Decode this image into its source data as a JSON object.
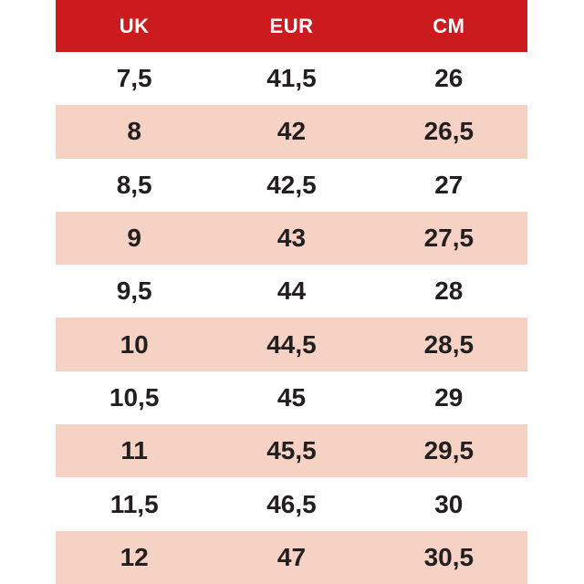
{
  "table": {
    "headers": {
      "uk": "UK",
      "eur": "EUR",
      "cm": "CM"
    },
    "rows": [
      {
        "uk": "7,5",
        "eur": "41,5",
        "cm": "26"
      },
      {
        "uk": "8",
        "eur": "42",
        "cm": "26,5"
      },
      {
        "uk": "8,5",
        "eur": "42,5",
        "cm": "27"
      },
      {
        "uk": "9",
        "eur": "43",
        "cm": "27,5"
      },
      {
        "uk": "9,5",
        "eur": "44",
        "cm": "28"
      },
      {
        "uk": "10",
        "eur": "44,5",
        "cm": "28,5"
      },
      {
        "uk": "10,5",
        "eur": "45",
        "cm": "29"
      },
      {
        "uk": "11",
        "eur": "45,5",
        "cm": "29,5"
      },
      {
        "uk": "11,5",
        "eur": "46,5",
        "cm": "30"
      },
      {
        "uk": "12",
        "eur": "47",
        "cm": "30,5"
      }
    ]
  },
  "colors": {
    "header_bg": "#cc1b1e",
    "header_text": "#ffffff",
    "row_bg": "#ffffff",
    "row_alt_bg": "#f5d2c4",
    "cell_text": "#231f20"
  },
  "chart_data": {
    "type": "table",
    "title": "",
    "columns": [
      "UK",
      "EUR",
      "CM"
    ],
    "rows": [
      [
        "7,5",
        "41,5",
        "26"
      ],
      [
        "8",
        "42",
        "26,5"
      ],
      [
        "8,5",
        "42,5",
        "27"
      ],
      [
        "9",
        "43",
        "27,5"
      ],
      [
        "9,5",
        "44",
        "28"
      ],
      [
        "10",
        "44,5",
        "28,5"
      ],
      [
        "10,5",
        "45",
        "29"
      ],
      [
        "11",
        "45,5",
        "29,5"
      ],
      [
        "11,5",
        "46,5",
        "30"
      ],
      [
        "12",
        "47",
        "30,5"
      ]
    ],
    "layout_hints": {
      "header_style": "red background, white bold text",
      "row_striping": "odd rows white, even rows light peach-pink",
      "alignment": "all cells centered",
      "decimal_separator": "comma"
    }
  }
}
